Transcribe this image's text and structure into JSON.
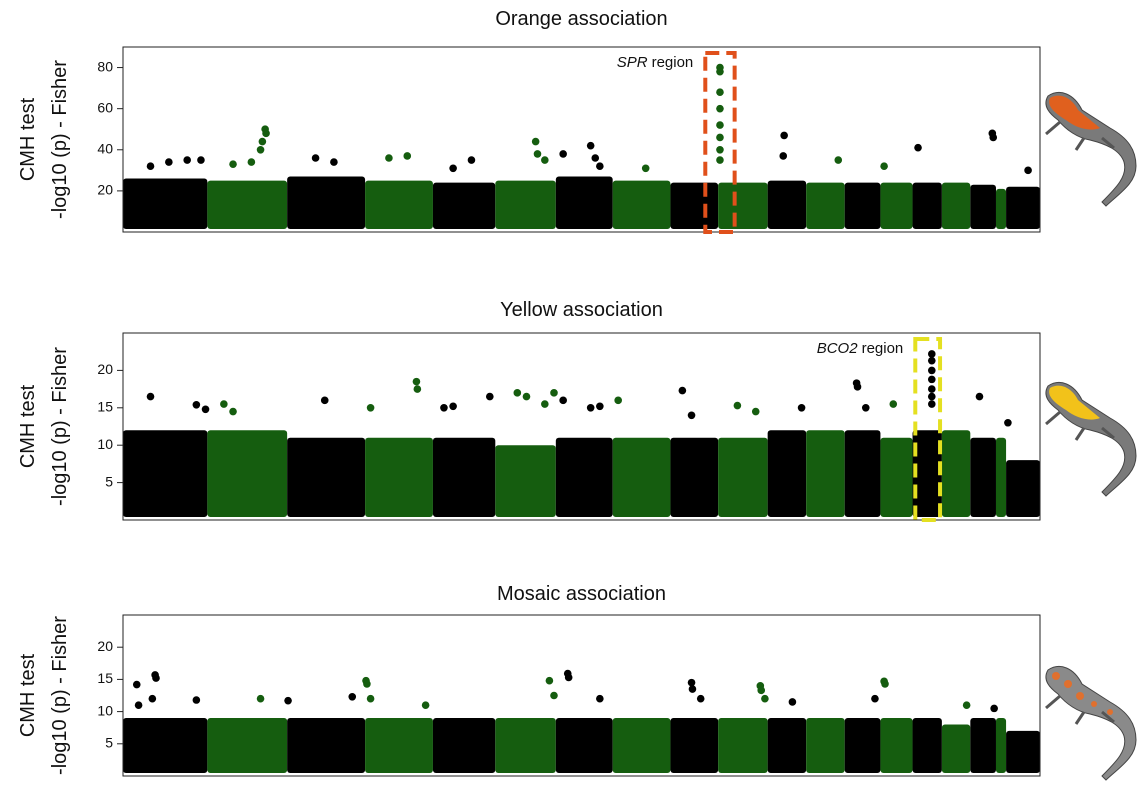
{
  "chart_data": [
    {
      "type": "manhattan",
      "title": "Orange association",
      "ylabel": [
        "CMH test",
        "-log10 (p) - Fisher"
      ],
      "xlim": [
        0,
        100
      ],
      "ylim": [
        0,
        90
      ],
      "yticks": [
        20,
        40,
        60,
        80
      ],
      "chromosome_colors": [
        "#000000",
        "#155d0f"
      ],
      "edges": [
        0,
        9.2,
        17.9,
        26.4,
        33.8,
        40.6,
        47.2,
        53.4,
        59.7,
        64.9,
        70.3,
        74.5,
        78.7,
        82.6,
        86.1,
        89.3,
        92.4,
        95.2,
        96.3,
        100
      ],
      "bands": [
        26,
        25,
        27,
        25,
        24,
        25,
        27,
        25,
        24,
        24,
        25,
        24,
        24,
        24,
        24,
        24,
        23,
        21,
        22
      ],
      "peaks": {
        "x": [
          3,
          5,
          7,
          8.5,
          12,
          14,
          15,
          15.5,
          15.6,
          15.2,
          21,
          23,
          29,
          31,
          38,
          36,
          45,
          45.2,
          46,
          48,
          51,
          51.5,
          52,
          57,
          65.1,
          65.1,
          65.1,
          65.1,
          65.1,
          65.1,
          65.1,
          65.1,
          72.1,
          72,
          78,
          83,
          86.7,
          94.8,
          94.9,
          98.7
        ],
        "y": [
          32,
          34,
          35,
          35,
          33,
          34,
          40,
          50,
          48,
          44,
          36,
          34,
          36,
          37,
          35,
          31,
          44,
          38,
          35,
          38,
          42,
          36,
          32,
          31,
          80,
          78,
          68,
          60,
          52,
          46,
          40,
          35,
          47,
          37,
          35,
          32,
          41,
          48,
          46,
          30
        ]
      },
      "highlight": {
        "x": [
          63.5,
          66.7
        ],
        "color": "#e0501b"
      },
      "annotation": [
        "SPR",
        "region"
      ]
    },
    {
      "type": "manhattan",
      "title": "Yellow association",
      "ylabel": [
        "CMH test",
        "-log10 (p) - Fisher"
      ],
      "xlim": [
        0,
        100
      ],
      "ylim": [
        0,
        25
      ],
      "yticks": [
        5,
        10,
        15,
        20
      ],
      "chromosome_colors": [
        "#000000",
        "#155d0f"
      ],
      "edges": [
        0,
        9.2,
        17.9,
        26.4,
        33.8,
        40.6,
        47.2,
        53.4,
        59.7,
        64.9,
        70.3,
        74.5,
        78.7,
        82.6,
        86.1,
        89.3,
        92.4,
        95.2,
        96.3,
        100
      ],
      "bands": [
        12,
        12,
        11,
        11,
        11,
        10,
        11,
        11,
        11,
        11,
        12,
        12,
        12,
        11,
        12,
        12,
        11,
        11,
        8
      ],
      "peaks": {
        "x": [
          3,
          8,
          9,
          11,
          12,
          22,
          27,
          32,
          32.1,
          35,
          36,
          40,
          43,
          44,
          46,
          47,
          48,
          51,
          52,
          54,
          61,
          62,
          67,
          69,
          74,
          80,
          80.1,
          81,
          84,
          88.2,
          88.2,
          88.2,
          88.2,
          88.2,
          88.2,
          88.2,
          93.4,
          96.5
        ],
        "y": [
          16.5,
          15.4,
          14.8,
          15.5,
          14.5,
          16,
          15,
          18.5,
          17.5,
          15,
          15.2,
          16.5,
          17,
          16.5,
          15.5,
          17,
          16,
          15,
          15.2,
          16,
          17.3,
          14,
          15.3,
          14.5,
          15,
          18.3,
          17.8,
          15,
          15.5,
          22.2,
          21.3,
          20,
          18.8,
          17.5,
          16.5,
          15.5,
          16.5,
          13
        ]
      },
      "highlight": {
        "x": [
          86.4,
          89.1
        ],
        "color": "#e4e021"
      },
      "annotation": [
        "BCO2",
        "region"
      ]
    },
    {
      "type": "manhattan",
      "title": "Mosaic association",
      "ylabel": [
        "CMH test",
        "-log10 (p) - Fisher"
      ],
      "xlim": [
        0,
        100
      ],
      "ylim": [
        0,
        25
      ],
      "yticks": [
        5,
        10,
        15,
        20
      ],
      "chromosome_colors": [
        "#000000",
        "#155d0f"
      ],
      "edges": [
        0,
        9.2,
        17.9,
        26.4,
        33.8,
        40.6,
        47.2,
        53.4,
        59.7,
        64.9,
        70.3,
        74.5,
        78.7,
        82.6,
        86.1,
        89.3,
        92.4,
        95.2,
        96.3,
        100
      ],
      "bands": [
        9,
        9,
        9,
        9,
        9,
        9,
        9,
        9,
        9,
        9,
        9,
        9,
        9,
        9,
        9,
        8,
        9,
        9,
        7
      ],
      "peaks": {
        "x": [
          1.5,
          1.7,
          3.5,
          3.6,
          3.2,
          8,
          15,
          18,
          25,
          26.5,
          26.6,
          27,
          33,
          46.5,
          47,
          48.5,
          48.6,
          52,
          62,
          62.1,
          63,
          69.5,
          69.6,
          70,
          73,
          83,
          83.1,
          82,
          92,
          95
        ],
        "y": [
          14.2,
          11,
          15.7,
          15.2,
          12,
          11.8,
          12,
          11.7,
          12.3,
          14.8,
          14.3,
          12,
          11,
          14.8,
          12.5,
          15.9,
          15.3,
          12,
          14.5,
          13.5,
          12,
          14,
          13.3,
          12,
          11.5,
          14.7,
          14.3,
          12,
          11,
          10.5
        ]
      }
    }
  ]
}
